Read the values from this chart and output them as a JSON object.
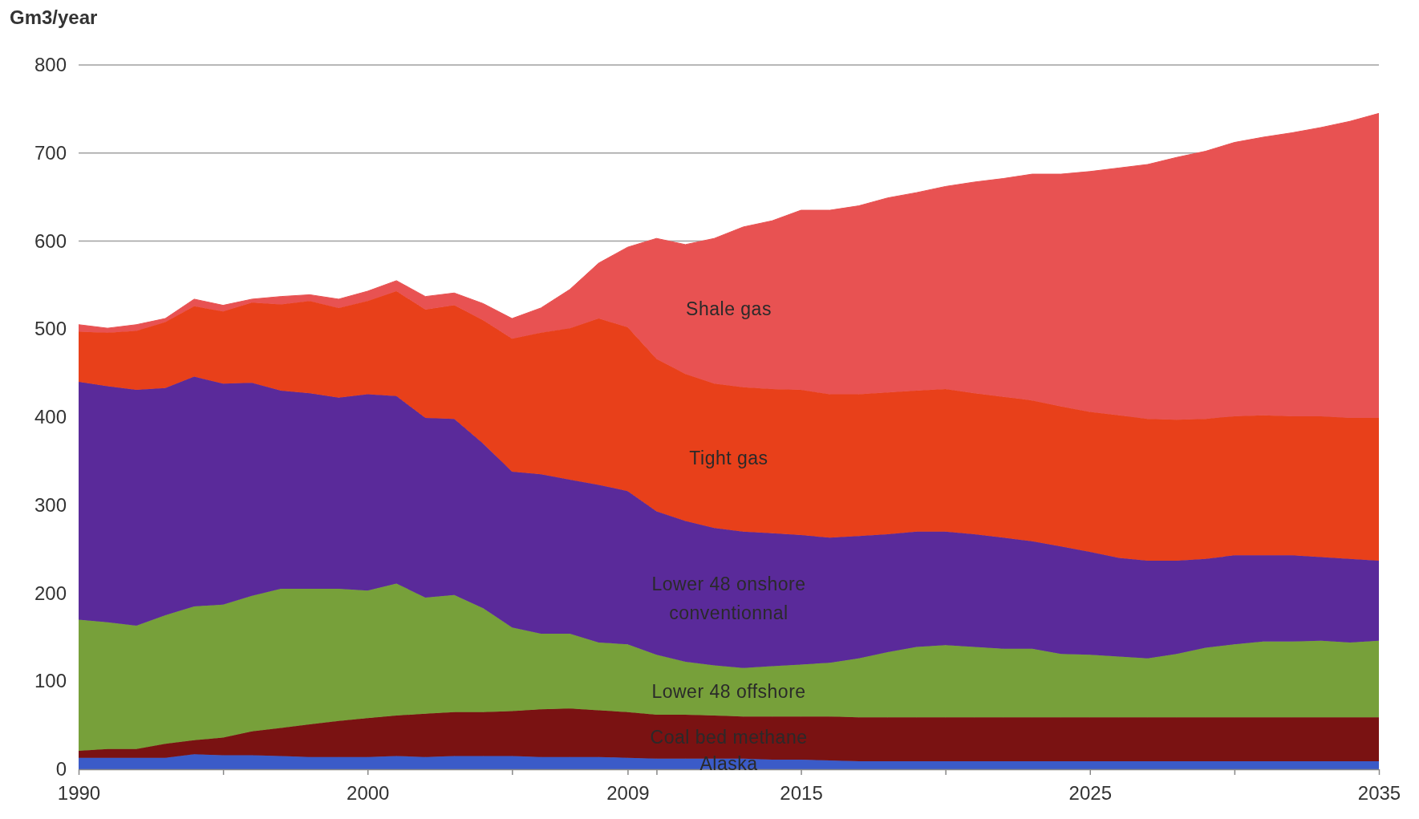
{
  "chart_data": {
    "type": "area",
    "stacked": true,
    "ylabel": "Gm3/year",
    "x": [
      1990,
      1991,
      1992,
      1993,
      1994,
      1995,
      1996,
      1997,
      1998,
      1999,
      2000,
      2001,
      2002,
      2003,
      2004,
      2005,
      2006,
      2007,
      2008,
      2009,
      2010,
      2011,
      2012,
      2013,
      2014,
      2015,
      2016,
      2017,
      2018,
      2019,
      2020,
      2021,
      2022,
      2023,
      2024,
      2025,
      2026,
      2027,
      2028,
      2029,
      2030,
      2031,
      2032,
      2033,
      2034,
      2035
    ],
    "series": [
      {
        "name": "Alaska",
        "color": "#3b5bc8",
        "values": [
          13,
          13,
          13,
          13,
          17,
          16,
          16,
          15,
          14,
          14,
          14,
          15,
          14,
          15,
          15,
          15,
          14,
          14,
          14,
          13,
          12,
          12,
          12,
          12,
          11,
          11,
          10,
          9,
          9,
          9,
          9,
          9,
          9,
          9,
          9,
          9,
          9,
          9,
          9,
          9,
          9,
          9,
          9,
          9,
          9,
          9
        ]
      },
      {
        "name": "Coal bed methane",
        "color": "#7a1212",
        "values": [
          8,
          10,
          10,
          16,
          16,
          20,
          27,
          32,
          37,
          41,
          44,
          46,
          49,
          50,
          50,
          51,
          54,
          55,
          53,
          52,
          50,
          50,
          49,
          48,
          49,
          49,
          50,
          50,
          50,
          50,
          50,
          50,
          50,
          50,
          50,
          50,
          50,
          50,
          50,
          50,
          50,
          50,
          50,
          50,
          50,
          50
        ]
      },
      {
        "name": "Lower 48 offshore",
        "color": "#77a03a",
        "values": [
          149,
          144,
          140,
          146,
          152,
          151,
          154,
          158,
          154,
          150,
          145,
          150,
          132,
          133,
          118,
          95,
          86,
          85,
          77,
          77,
          68,
          60,
          57,
          55,
          57,
          59,
          61,
          67,
          74,
          80,
          82,
          80,
          78,
          78,
          72,
          71,
          69,
          67,
          72,
          79,
          83,
          86,
          86,
          87,
          85,
          87
        ]
      },
      {
        "name": "Lower 48 onshore conventionnal",
        "color": "#5a2a9a",
        "values": [
          270,
          268,
          268,
          258,
          261,
          251,
          242,
          225,
          222,
          217,
          223,
          213,
          204,
          200,
          187,
          177,
          181,
          175,
          179,
          174,
          163,
          160,
          156,
          155,
          151,
          147,
          142,
          139,
          134,
          131,
          129,
          128,
          126,
          122,
          122,
          117,
          112,
          111,
          106,
          101,
          101,
          98,
          98,
          95,
          95,
          91
        ]
      },
      {
        "name": "Tight gas",
        "color": "#e8401a",
        "values": [
          57,
          61,
          67,
          75,
          80,
          82,
          91,
          98,
          105,
          102,
          106,
          119,
          123,
          129,
          140,
          151,
          161,
          172,
          189,
          186,
          173,
          167,
          164,
          164,
          164,
          165,
          163,
          161,
          161,
          160,
          162,
          160,
          160,
          160,
          159,
          159,
          162,
          161,
          160,
          159,
          158,
          159,
          158,
          160,
          160,
          162
        ]
      },
      {
        "name": "Shale gas",
        "color": "#e85252",
        "values": [
          8,
          5,
          7,
          4,
          8,
          7,
          4,
          9,
          7,
          10,
          11,
          12,
          15,
          14,
          19,
          23,
          28,
          44,
          63,
          91,
          137,
          147,
          165,
          182,
          191,
          204,
          209,
          214,
          221,
          225,
          230,
          240,
          248,
          257,
          264,
          273,
          281,
          289,
          298,
          304,
          311,
          316,
          322,
          328,
          337,
          346
        ]
      }
    ],
    "xlim": [
      1990,
      2035
    ],
    "xticks": [
      1990,
      {
        "value": 1995,
        "label": null
      },
      2000,
      {
        "value": 2005,
        "label": null
      },
      2009,
      {
        "value": 2010,
        "label": null
      },
      2015,
      {
        "value": 2020,
        "label": null
      },
      2025,
      {
        "value": 2030,
        "label": null
      },
      2035
    ],
    "ylim": [
      0,
      800
    ],
    "yticks": [
      0,
      100,
      200,
      300,
      400,
      500,
      600,
      700,
      800
    ],
    "grid": "y"
  }
}
